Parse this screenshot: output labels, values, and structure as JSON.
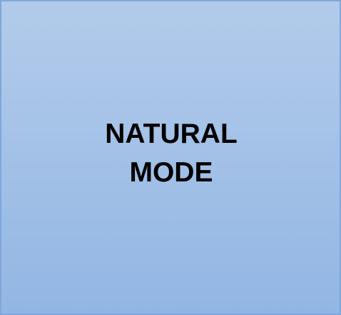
{
  "tile": {
    "line1": "NATURAL",
    "line2": "MODE"
  },
  "colors": {
    "gradient_top": "#b2cbea",
    "gradient_bottom": "#92b6e3",
    "border": "#7fa7db",
    "text": "#000000"
  }
}
